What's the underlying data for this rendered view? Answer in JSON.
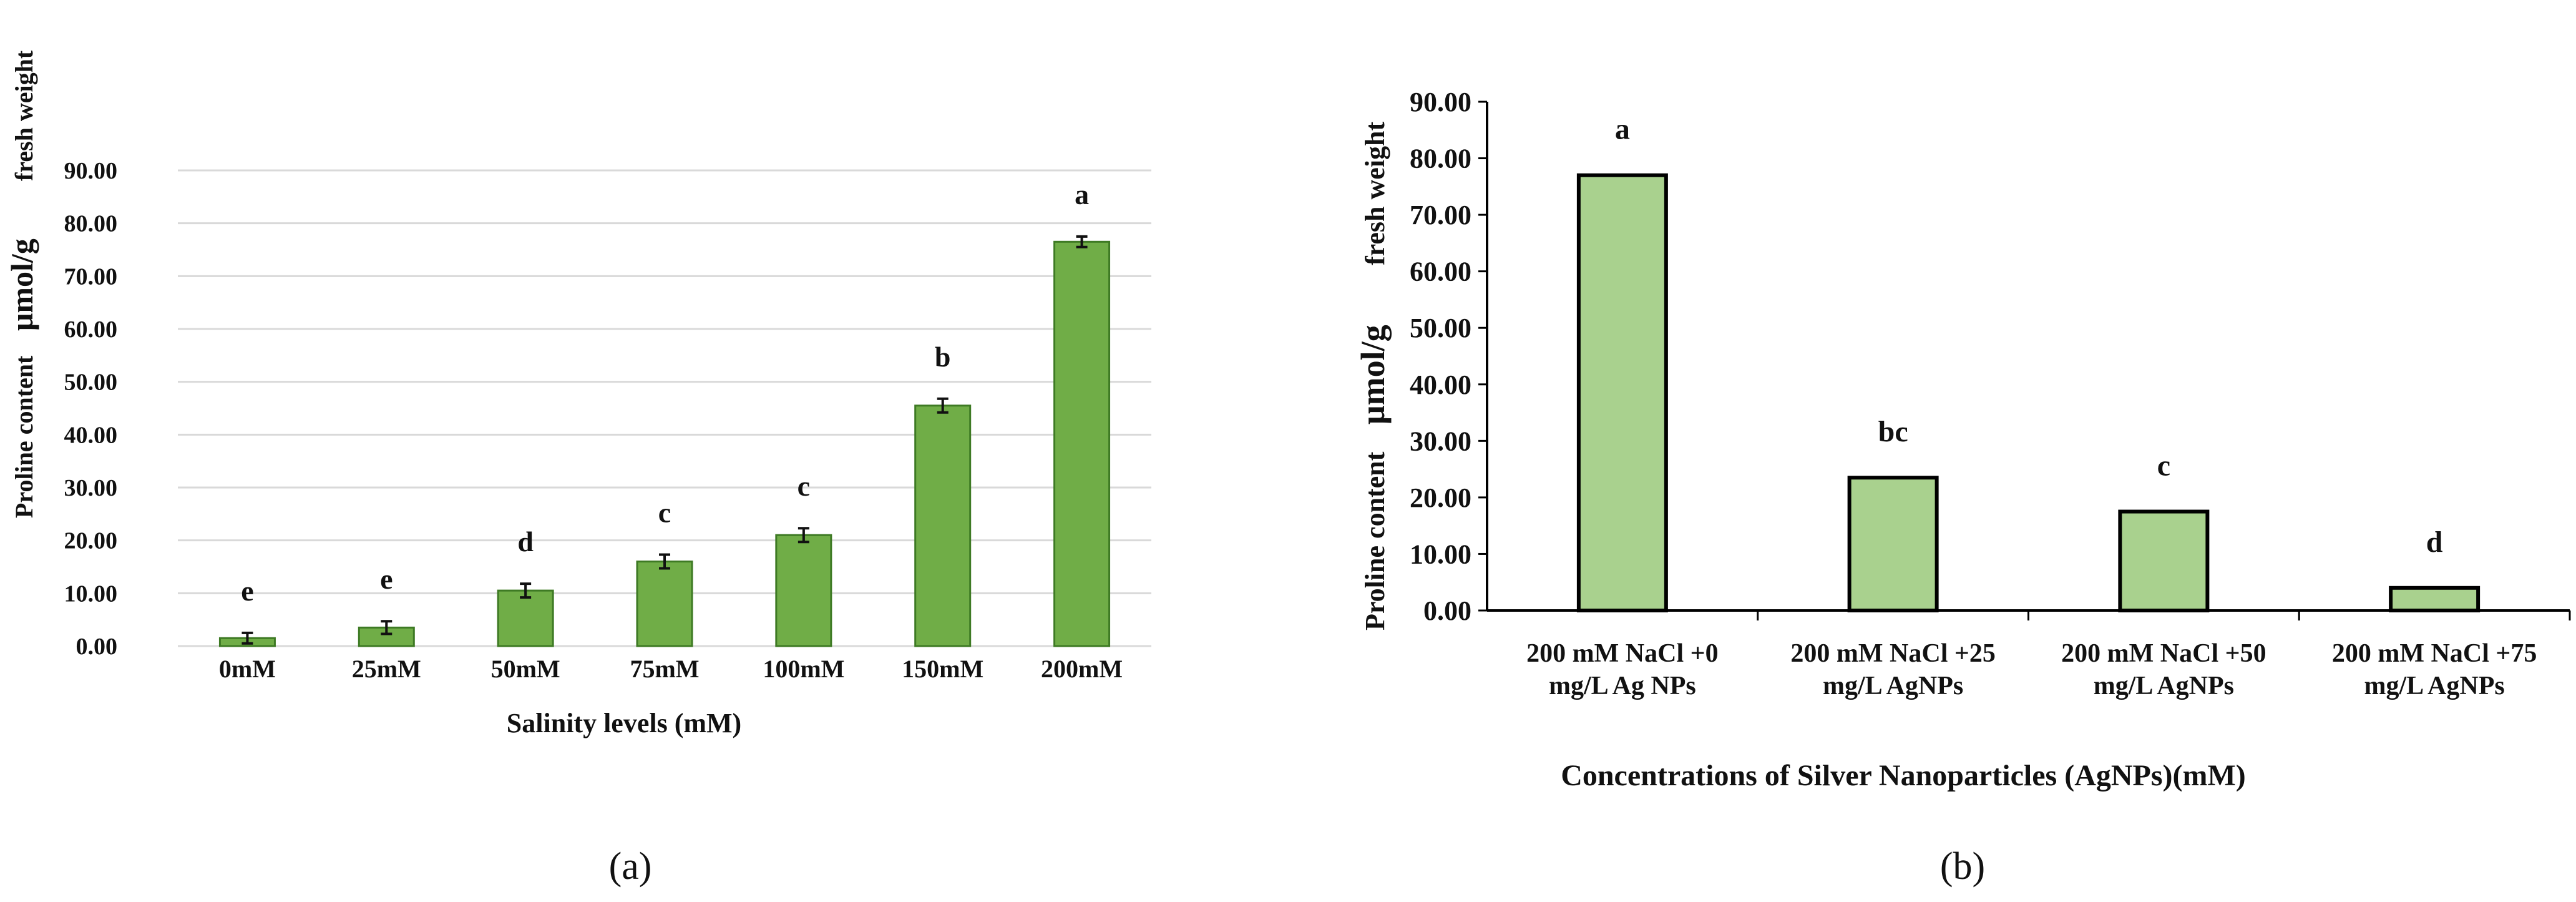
{
  "colors": {
    "bar_a": "#70AD47",
    "bar_a_edge": "#3E7A24",
    "bar_b": "#A9D18E",
    "bar_b_edge": "#000000",
    "grid": "#D9D9D9",
    "text": "#111111"
  },
  "chart_data": [
    {
      "type": "bar",
      "panel_label": "(a)",
      "title": "",
      "xlabel": "Salinity levels (mM)",
      "ylabel_parts": [
        "Proline content",
        "μmol/g",
        "fresh weight"
      ],
      "categories": [
        "0mM",
        "25mM",
        "50mM",
        "75mM",
        "100mM",
        "150mM",
        "200mM"
      ],
      "values": [
        1.5,
        3.5,
        10.5,
        16.0,
        21.0,
        45.5,
        76.5
      ],
      "errors": [
        1.0,
        1.2,
        1.3,
        1.3,
        1.3,
        1.3,
        1.0
      ],
      "letters": [
        "e",
        "e",
        "d",
        "c",
        "c",
        "b",
        "a"
      ],
      "ylim": [
        0,
        90
      ],
      "yticks": [
        "0.00",
        "10.00",
        "20.00",
        "30.00",
        "40.00",
        "50.00",
        "60.00",
        "70.00",
        "80.00",
        "90.00"
      ],
      "grid": true
    },
    {
      "type": "bar",
      "panel_label": "(b)",
      "title": "",
      "xlabel": "Concentrations of Silver Nanoparticles (AgNPs)(mM)",
      "ylabel_parts": [
        "Proline content",
        "μmol/g",
        "fresh weight"
      ],
      "categories": [
        [
          "200 mM NaCl +0",
          "mg/L  Ag NPs"
        ],
        [
          "200 mM NaCl +25",
          "mg/L  AgNPs"
        ],
        [
          "200 mM NaCl +50",
          "mg/L  AgNPs"
        ],
        [
          "200 mM NaCl +75",
          "mg/L  AgNPs"
        ]
      ],
      "values": [
        77.0,
        23.5,
        17.5,
        4.0
      ],
      "letters": [
        "a",
        "bc",
        "c",
        "d"
      ],
      "ylim": [
        0,
        90
      ],
      "yticks": [
        "0.00",
        "10.00",
        "20.00",
        "30.00",
        "40.00",
        "50.00",
        "60.00",
        "70.00",
        "80.00",
        "90.00"
      ],
      "grid": false
    }
  ]
}
